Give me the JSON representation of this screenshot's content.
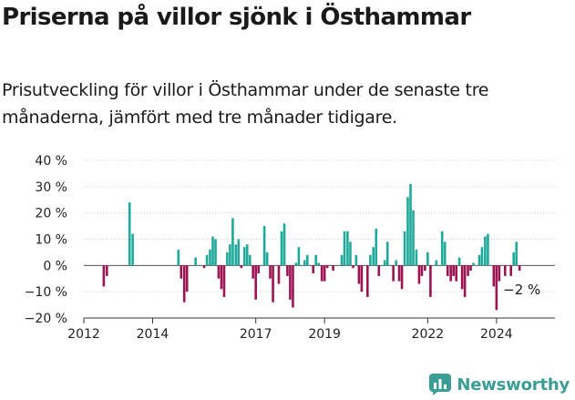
{
  "header": {
    "title": "Priserna på villor sjönk i Östhammar",
    "subtitle": "Prisutveckling för villor i Östhammar under de senaste tre månaderna, jämfört med tre månader tidigare."
  },
  "brand": {
    "name": "Newsworthy",
    "icon": "newsworthy-logo-icon"
  },
  "colors": {
    "positive": "#1fa99a",
    "negative": "#9c1451",
    "axis": "#333333",
    "grid": "#cccccc"
  },
  "chart_data": {
    "type": "bar",
    "ylim": [
      -20,
      40
    ],
    "xlim": [
      2012.0,
      2025.7
    ],
    "y_ticks": [
      -20,
      -10,
      0,
      10,
      20,
      30,
      40
    ],
    "y_tick_labels": [
      "−20 %",
      "−10 %",
      "0 %",
      "10 %",
      "20 %",
      "30 %",
      "40 %"
    ],
    "x_ticks": [
      2012,
      2014,
      2017,
      2019,
      2022,
      2024
    ],
    "x_tick_labels": [
      "2012",
      "2014",
      "2017",
      "2019",
      "2022",
      "2024"
    ],
    "last_value_label": "−2 %",
    "x": [
      2012.58,
      2012.67,
      2013.33,
      2013.42,
      2014.75,
      2014.83,
      2014.92,
      2015.0,
      2015.25,
      2015.5,
      2015.58,
      2015.67,
      2015.75,
      2015.83,
      2015.92,
      2016.0,
      2016.08,
      2016.17,
      2016.25,
      2016.33,
      2016.42,
      2016.5,
      2016.58,
      2016.67,
      2016.75,
      2016.83,
      2016.92,
      2017.0,
      2017.08,
      2017.25,
      2017.33,
      2017.42,
      2017.5,
      2017.67,
      2017.75,
      2017.83,
      2017.92,
      2018.0,
      2018.08,
      2018.17,
      2018.25,
      2018.42,
      2018.5,
      2018.67,
      2018.75,
      2018.83,
      2018.92,
      2019.0,
      2019.08,
      2019.25,
      2019.5,
      2019.58,
      2019.67,
      2019.75,
      2019.83,
      2019.92,
      2020.0,
      2020.08,
      2020.25,
      2020.33,
      2020.42,
      2020.5,
      2020.58,
      2020.67,
      2020.75,
      2020.83,
      2021.0,
      2021.08,
      2021.17,
      2021.25,
      2021.33,
      2021.42,
      2021.5,
      2021.58,
      2021.67,
      2021.75,
      2021.83,
      2021.92,
      2022.0,
      2022.08,
      2022.25,
      2022.42,
      2022.5,
      2022.58,
      2022.67,
      2022.75,
      2022.83,
      2022.92,
      2023.0,
      2023.08,
      2023.17,
      2023.25,
      2023.33,
      2023.5,
      2023.58,
      2023.67,
      2023.75,
      2023.92,
      2024.0,
      2024.08,
      2024.25,
      2024.42,
      2024.5,
      2024.58,
      2024.67
    ],
    "values": [
      -8,
      -4,
      24,
      12,
      6,
      -5,
      -14,
      -10,
      3,
      -1,
      4,
      6,
      11,
      10,
      -5,
      -9,
      -12,
      5,
      8,
      18,
      8,
      10,
      -1,
      7,
      8,
      4,
      -5,
      -13,
      -3,
      15,
      5,
      -5,
      -14,
      -7,
      13,
      16,
      -4,
      -13,
      -16,
      1,
      7,
      2,
      4,
      -3,
      4,
      1,
      -6,
      -6,
      -1,
      -2,
      4,
      13,
      13,
      9,
      -1,
      4,
      -7,
      -10,
      -12,
      4,
      7,
      14,
      -4,
      0,
      2,
      9,
      -6,
      2,
      -6,
      -9,
      13,
      26,
      31,
      21,
      6,
      -7,
      -4,
      -2,
      5,
      -12,
      2,
      13,
      9,
      -4,
      -6,
      -4,
      -6,
      3,
      -9,
      -12,
      -4,
      -2,
      1,
      4,
      7,
      11,
      12,
      -8,
      -17,
      -6,
      -4,
      -4,
      5,
      9,
      -2
    ]
  }
}
